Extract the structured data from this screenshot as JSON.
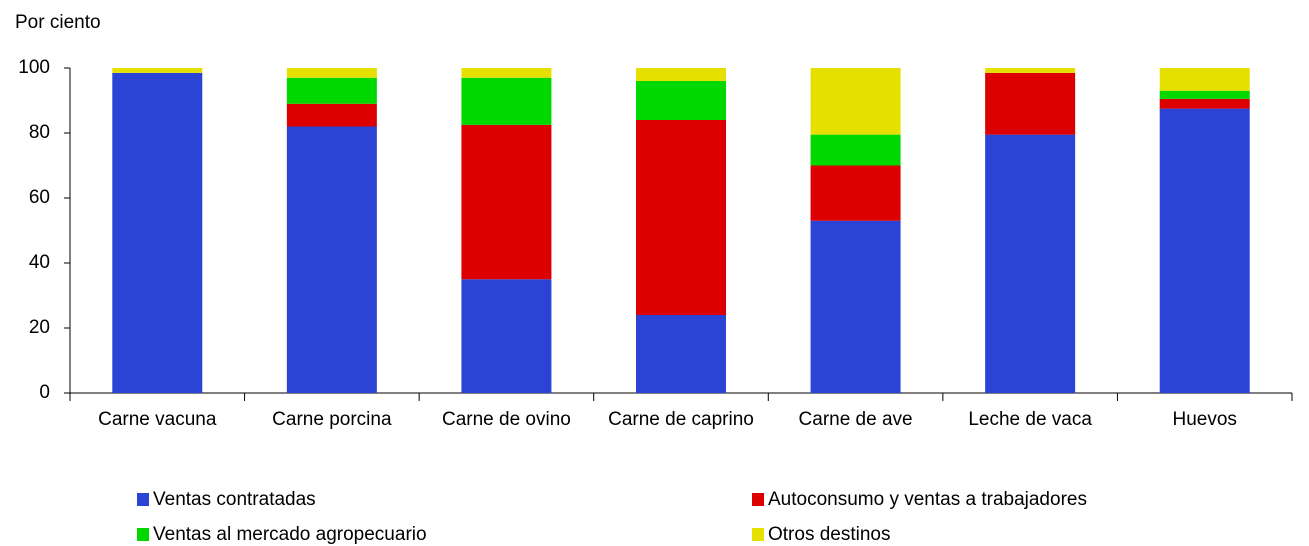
{
  "chart_data": {
    "type": "stacked_bar",
    "y_axis_label": "Por ciento",
    "categories": [
      "Carne vacuna",
      "Carne porcina",
      "Carne de ovino",
      "Carne de caprino",
      "Carne de ave",
      "Leche de vaca",
      "Huevos"
    ],
    "series": [
      {
        "name": "Ventas contratadas",
        "color": "#2b44d6",
        "values": [
          98.5,
          82,
          35,
          24,
          53,
          79.5,
          87.5
        ]
      },
      {
        "name": "Autoconsumo y ventas a trabajadores",
        "color": "#dd0000",
        "values": [
          0,
          7,
          47.5,
          60,
          17,
          19,
          3
        ]
      },
      {
        "name": "Ventas al mercado agropecuario",
        "color": "#00d800",
        "values": [
          0,
          8,
          14.5,
          12,
          9.5,
          0,
          2.5
        ]
      },
      {
        "name": "Otros destinos",
        "color": "#e6e000",
        "values": [
          1.5,
          3,
          3,
          4,
          20.5,
          1.5,
          7
        ]
      }
    ],
    "ylim": [
      0,
      100
    ],
    "yticks": [
      0,
      20,
      40,
      60,
      80,
      100
    ],
    "grid": false
  }
}
